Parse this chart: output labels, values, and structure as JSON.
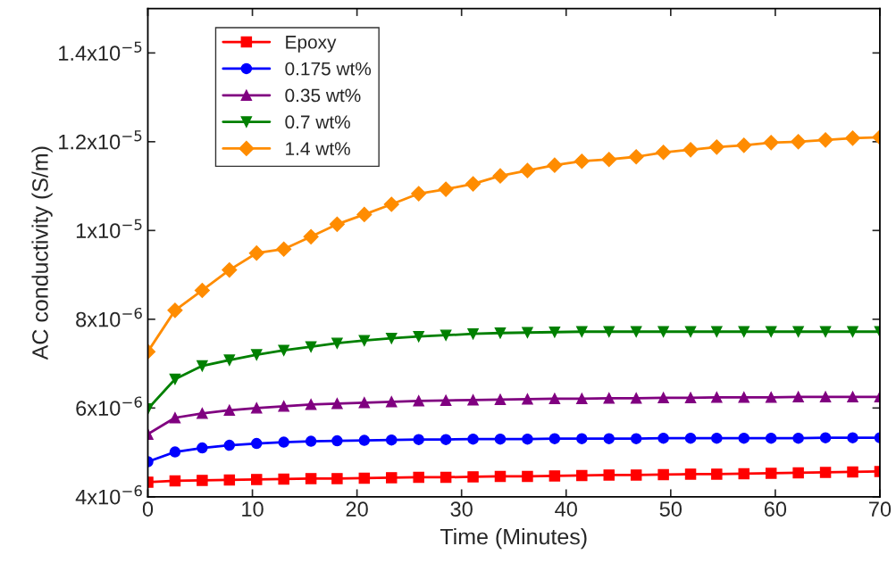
{
  "chart_data": {
    "type": "line",
    "xlabel": "Time (Minutes)",
    "ylabel": "AC conductivity (S/m)",
    "x": [
      0,
      2.6,
      5.2,
      7.8,
      10.4,
      13,
      15.6,
      18.1,
      20.7,
      23.3,
      25.9,
      28.5,
      31.1,
      33.7,
      36.3,
      38.9,
      41.5,
      44.1,
      46.7,
      49.3,
      51.9,
      54.4,
      57,
      59.6,
      62.2,
      64.8,
      67.4,
      70
    ],
    "series": [
      {
        "name": "Epoxy",
        "color": "#ff0000",
        "marker": "square",
        "values": [
          4.33e-06,
          4.36e-06,
          4.37e-06,
          4.38e-06,
          4.39e-06,
          4.4e-06,
          4.41e-06,
          4.41e-06,
          4.42e-06,
          4.43e-06,
          4.44e-06,
          4.44e-06,
          4.45e-06,
          4.46e-06,
          4.46e-06,
          4.47e-06,
          4.48e-06,
          4.49e-06,
          4.49e-06,
          4.5e-06,
          4.51e-06,
          4.51e-06,
          4.52e-06,
          4.53e-06,
          4.54e-06,
          4.55e-06,
          4.56e-06,
          4.57e-06
        ]
      },
      {
        "name": "0.175 wt%",
        "color": "#0000ff",
        "marker": "circle",
        "values": [
          4.79e-06,
          5.01e-06,
          5.1e-06,
          5.16e-06,
          5.2e-06,
          5.23e-06,
          5.25e-06,
          5.26e-06,
          5.27e-06,
          5.28e-06,
          5.29e-06,
          5.29e-06,
          5.3e-06,
          5.3e-06,
          5.3e-06,
          5.31e-06,
          5.31e-06,
          5.31e-06,
          5.31e-06,
          5.32e-06,
          5.32e-06,
          5.32e-06,
          5.32e-06,
          5.32e-06,
          5.32e-06,
          5.33e-06,
          5.33e-06,
          5.33e-06
        ]
      },
      {
        "name": "0.35 wt%",
        "color": "#800080",
        "marker": "triangle",
        "values": [
          5.41e-06,
          5.78e-06,
          5.88e-06,
          5.95e-06,
          6e-06,
          6.04e-06,
          6.08e-06,
          6.1e-06,
          6.12e-06,
          6.14e-06,
          6.16e-06,
          6.17e-06,
          6.18e-06,
          6.19e-06,
          6.2e-06,
          6.21e-06,
          6.21e-06,
          6.22e-06,
          6.22e-06,
          6.23e-06,
          6.23e-06,
          6.24e-06,
          6.24e-06,
          6.24e-06,
          6.25e-06,
          6.25e-06,
          6.25e-06,
          6.25e-06
        ]
      },
      {
        "name": "0.7 wt%",
        "color": "#008000",
        "marker": "triangle_down",
        "values": [
          5.98e-06,
          6.65e-06,
          6.95e-06,
          7.08e-06,
          7.2e-06,
          7.3e-06,
          7.38e-06,
          7.46e-06,
          7.52e-06,
          7.57e-06,
          7.61e-06,
          7.64e-06,
          7.67e-06,
          7.69e-06,
          7.7e-06,
          7.71e-06,
          7.72e-06,
          7.72e-06,
          7.72e-06,
          7.72e-06,
          7.72e-06,
          7.72e-06,
          7.72e-06,
          7.72e-06,
          7.72e-06,
          7.72e-06,
          7.72e-06,
          7.72e-06
        ]
      },
      {
        "name": "1.4 wt%",
        "color": "#ff8c00",
        "marker": "diamond",
        "values": [
          7.27e-06,
          8.2e-06,
          8.65e-06,
          9.11e-06,
          9.49e-06,
          9.58e-06,
          9.86e-06,
          1.014e-05,
          1.036e-05,
          1.059e-05,
          1.083e-05,
          1.093e-05,
          1.105e-05,
          1.123e-05,
          1.135e-05,
          1.147e-05,
          1.156e-05,
          1.16e-05,
          1.166e-05,
          1.176e-05,
          1.182e-05,
          1.188e-05,
          1.192e-05,
          1.198e-05,
          1.2e-05,
          1.204e-05,
          1.208e-05,
          1.21e-05
        ]
      }
    ],
    "xlim": [
      0,
      70
    ],
    "xticks": [
      0,
      10,
      20,
      30,
      40,
      50,
      60,
      70
    ],
    "ylim": [
      4e-06,
      1.5e-05
    ],
    "yticks": [
      {
        "value": 4e-06,
        "label": "4x10$^{−6}$"
      },
      {
        "value": 6e-06,
        "label": "6x10$^{−6}$"
      },
      {
        "value": 8e-06,
        "label": "8x10$^{−6}$"
      },
      {
        "value": 1e-05,
        "label": "1x10$^{−5}$"
      },
      {
        "value": 1.2e-05,
        "label": "1.2x10$^{−5}$"
      },
      {
        "value": 1.4e-05,
        "label": "1.4x10$^{−5}$"
      }
    ],
    "legend": "top left",
    "grid": false,
    "line_style": "solid"
  }
}
